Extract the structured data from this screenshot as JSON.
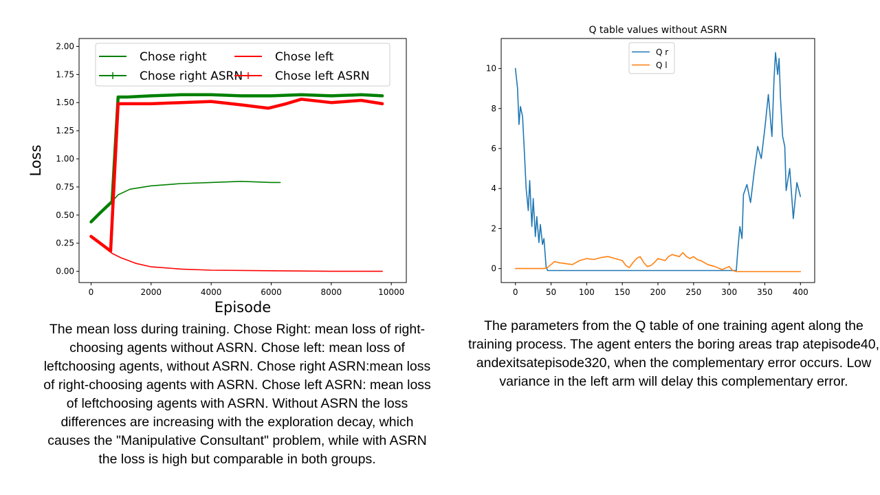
{
  "chart_data": [
    {
      "type": "line",
      "title": "",
      "xlabel": "Episode",
      "ylabel": "Loss",
      "xlim": [
        -400,
        10500
      ],
      "ylim": [
        -0.1,
        2.07
      ],
      "xticks": [
        0,
        2000,
        4000,
        6000,
        8000,
        10000
      ],
      "xtick_labels": [
        "0",
        "2000",
        "4000",
        "6000",
        "8000",
        "10000"
      ],
      "yticks": [
        0.0,
        0.25,
        0.5,
        0.75,
        1.0,
        1.25,
        1.5,
        1.75,
        2.0
      ],
      "ytick_labels": [
        "0.00",
        "0.25",
        "0.50",
        "0.75",
        "1.00",
        "1.25",
        "1.50",
        "1.75",
        "2.00"
      ],
      "grid": false,
      "legend_position": "top",
      "series": [
        {
          "name": "Chose right",
          "color": "#008000",
          "marker": "none",
          "x": [
            0,
            300,
            700,
            900,
            1300,
            2000,
            3000,
            4000,
            5000,
            6000,
            6300
          ],
          "y": [
            0.45,
            0.52,
            0.62,
            0.68,
            0.73,
            0.76,
            0.78,
            0.79,
            0.8,
            0.79,
            0.79
          ]
        },
        {
          "name": "Chose left",
          "color": "#ff0000",
          "marker": "none",
          "x": [
            0,
            700,
            1000,
            1500,
            2000,
            3000,
            4000,
            6000,
            8000,
            9700
          ],
          "y": [
            0.31,
            0.16,
            0.12,
            0.07,
            0.04,
            0.02,
            0.01,
            0.005,
            0.0,
            0.0
          ]
        },
        {
          "name": "Chose right ASRN",
          "color": "#008000",
          "marker": "plus",
          "x": [
            0,
            300,
            700,
            900,
            1200,
            2000,
            3000,
            4000,
            5000,
            6000,
            7000,
            8000,
            9000,
            9700
          ],
          "y": [
            0.44,
            0.52,
            0.62,
            1.55,
            1.55,
            1.56,
            1.57,
            1.57,
            1.56,
            1.56,
            1.57,
            1.56,
            1.57,
            1.56
          ]
        },
        {
          "name": "Chose left ASRN",
          "color": "#ff0000",
          "marker": "plus",
          "x": [
            0,
            300,
            650,
            900,
            1200,
            2000,
            3000,
            4000,
            5000,
            5900,
            6500,
            7000,
            8000,
            9000,
            9700
          ],
          "y": [
            0.31,
            0.25,
            0.18,
            1.49,
            1.49,
            1.49,
            1.5,
            1.51,
            1.48,
            1.45,
            1.49,
            1.53,
            1.5,
            1.52,
            1.49
          ]
        }
      ]
    },
    {
      "type": "line",
      "title": "Q table values without ASRN",
      "xlabel": "",
      "ylabel": "",
      "xlim": [
        -20,
        420
      ],
      "ylim": [
        -0.7,
        11.5
      ],
      "xticks": [
        0,
        50,
        100,
        150,
        200,
        250,
        300,
        350,
        400
      ],
      "xtick_labels": [
        "0",
        "50",
        "100",
        "150",
        "200",
        "250",
        "300",
        "350",
        "400"
      ],
      "yticks": [
        0,
        2,
        4,
        6,
        8,
        10
      ],
      "ytick_labels": [
        "0",
        "2",
        "4",
        "6",
        "8",
        "10"
      ],
      "grid": false,
      "legend_position": "top-center",
      "series": [
        {
          "name": "Q r",
          "color": "#1f77b4",
          "x": [
            0,
            3,
            5,
            7,
            10,
            13,
            15,
            18,
            20,
            23,
            25,
            28,
            30,
            33,
            35,
            38,
            40,
            43,
            45,
            100,
            200,
            300,
            310,
            312,
            315,
            318,
            320,
            325,
            330,
            335,
            340,
            345,
            350,
            355,
            360,
            363,
            365,
            368,
            370,
            372,
            375,
            378,
            380,
            385,
            390,
            395,
            400
          ],
          "y": [
            10.0,
            9.0,
            7.2,
            8.1,
            7.6,
            5.5,
            4.0,
            2.9,
            4.4,
            2.1,
            3.5,
            1.6,
            2.6,
            1.3,
            2.2,
            1.2,
            1.5,
            0.1,
            -0.1,
            -0.1,
            -0.1,
            -0.1,
            -0.1,
            0.9,
            2.1,
            1.5,
            3.7,
            4.2,
            3.3,
            4.8,
            6.1,
            5.5,
            7.0,
            8.7,
            6.6,
            9.5,
            10.8,
            9.7,
            10.5,
            8.5,
            6.6,
            6.1,
            3.9,
            5.0,
            2.5,
            4.3,
            3.6
          ]
        },
        {
          "name": "Q l",
          "color": "#ff7f0e",
          "x": [
            0,
            20,
            40,
            45,
            50,
            55,
            60,
            70,
            80,
            90,
            100,
            110,
            120,
            130,
            140,
            150,
            155,
            160,
            165,
            170,
            175,
            180,
            185,
            190,
            195,
            200,
            210,
            215,
            220,
            230,
            235,
            240,
            245,
            250,
            255,
            260,
            270,
            280,
            290,
            300,
            305,
            310,
            320,
            340,
            360,
            380,
            400
          ],
          "y": [
            0.0,
            0.0,
            0.0,
            0.05,
            0.2,
            0.35,
            0.3,
            0.25,
            0.2,
            0.4,
            0.5,
            0.45,
            0.55,
            0.6,
            0.5,
            0.4,
            0.15,
            0.05,
            0.3,
            0.5,
            0.6,
            0.3,
            0.1,
            0.15,
            0.3,
            0.5,
            0.4,
            0.6,
            0.7,
            0.6,
            0.8,
            0.6,
            0.5,
            0.6,
            0.45,
            0.4,
            0.2,
            0.1,
            -0.05,
            0.1,
            -0.1,
            -0.15,
            -0.15,
            -0.15,
            -0.15,
            -0.15,
            -0.15
          ]
        }
      ]
    }
  ],
  "captions": {
    "left": "The mean loss during training. Chose Right: mean loss of right-choosing agents without ASRN. Chose left: mean loss of leftchoosing agents, without ASRN. Chose right ASRN:mean loss of right-choosing agents with ASRN. Chose left ASRN: mean loss of leftchoosing agents with ASRN. Without ASRN the loss differences are increasing with the exploration decay, which causes the \"Manipulative Consultant\" problem, while with ASRN the loss is high but comparable in both groups.",
    "right": "The parameters from the Q table of one training agent along the training process. The agent enters the boring areas trap atepisode40, andexitsatepisode320, when the complementary error occurs. Low variance in the left arm will delay this complementary error."
  }
}
